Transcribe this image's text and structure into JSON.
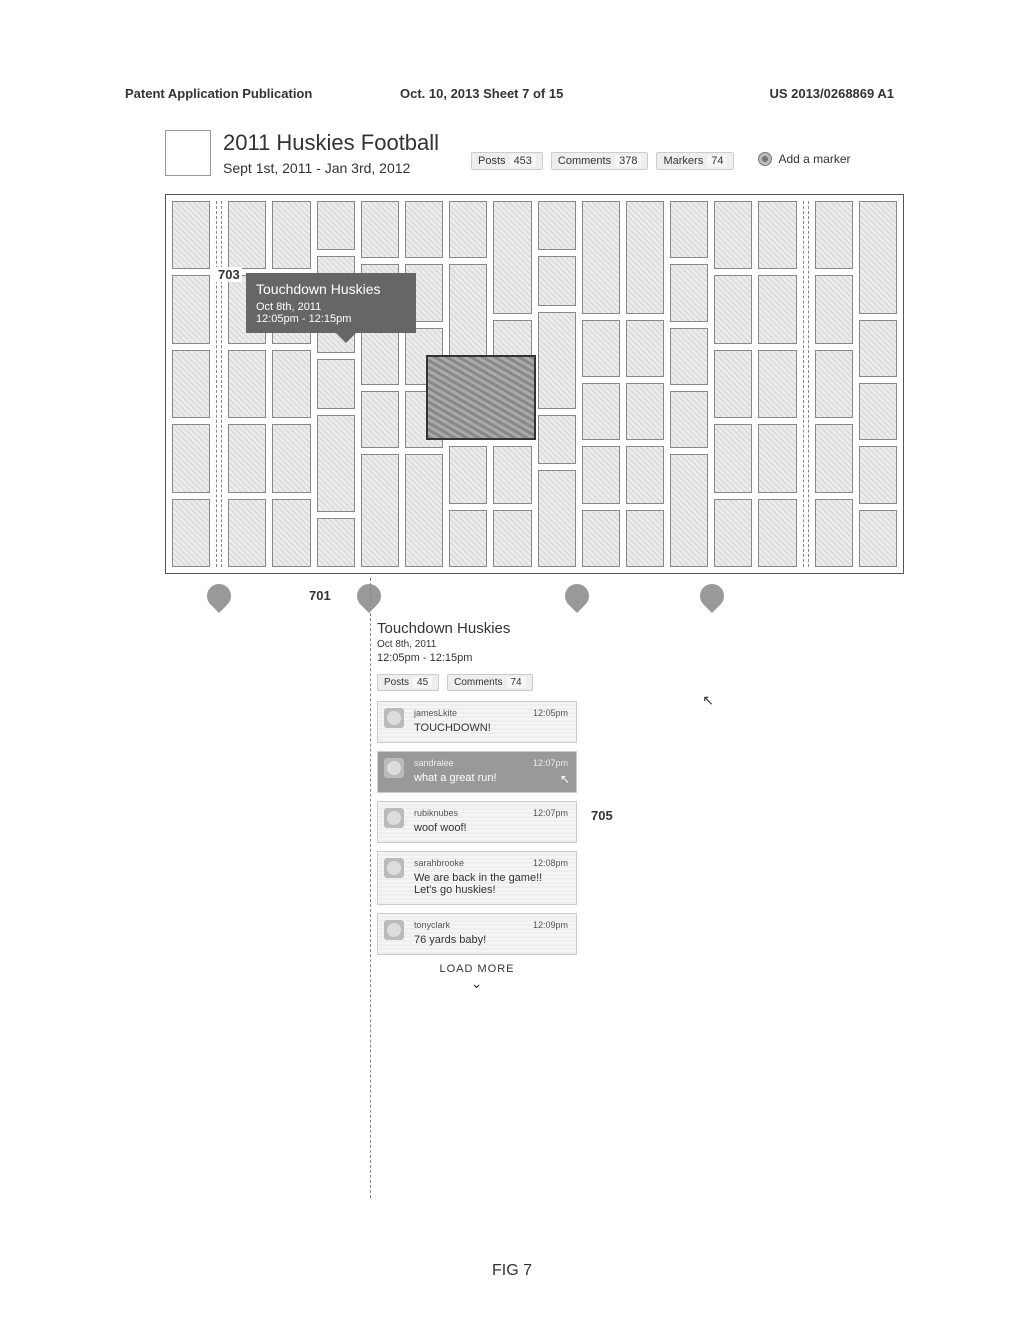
{
  "page_header": {
    "left": "Patent Application Publication",
    "center": "Oct. 10, 2013   Sheet 7 of 15",
    "right": "US 2013/0268869 A1"
  },
  "title": "2011 Huskies Football",
  "date_range": "Sept 1st, 2011 - Jan 3rd, 2012",
  "header_stats": {
    "posts_label": "Posts",
    "posts_count": "453",
    "comments_label": "Comments",
    "comments_count": "378",
    "markers_label": "Markers",
    "markers_count": "74"
  },
  "add_marker_label": "Add a marker",
  "tooltip": {
    "title": "Touchdown Huskies",
    "date": "Oct 8th, 2011",
    "time": "12:05pm - 12:15pm"
  },
  "callouts": {
    "c703": "703",
    "c701": "701",
    "c705": "705"
  },
  "detail": {
    "title": "Touchdown Huskies",
    "date": "Oct 8th, 2011",
    "time": "12:05pm - 12:15pm",
    "stats": {
      "posts_label": "Posts",
      "posts_count": "45",
      "comments_label": "Comments",
      "comments_count": "74"
    },
    "posts": [
      {
        "user": "jamesLkite",
        "time": "12:05pm",
        "body": "TOUCHDOWN!"
      },
      {
        "user": "sandralee",
        "time": "12:07pm",
        "body": "what a great run!",
        "highlight": true,
        "cursor": true
      },
      {
        "user": "rubiknubes",
        "time": "12:07pm",
        "body": "woof woof!"
      },
      {
        "user": "sarahbrooke",
        "time": "12:08pm",
        "body": "We are back in the game!! Let's go huskies!"
      },
      {
        "user": "tonyclark",
        "time": "12:09pm",
        "body": "76 yards baby!"
      }
    ],
    "load_more": "LOAD MORE"
  },
  "figure_label": "FIG 7",
  "grid": {
    "cols": 16,
    "dashed_after": [
      1,
      14
    ],
    "tiles_per_col": 5
  }
}
